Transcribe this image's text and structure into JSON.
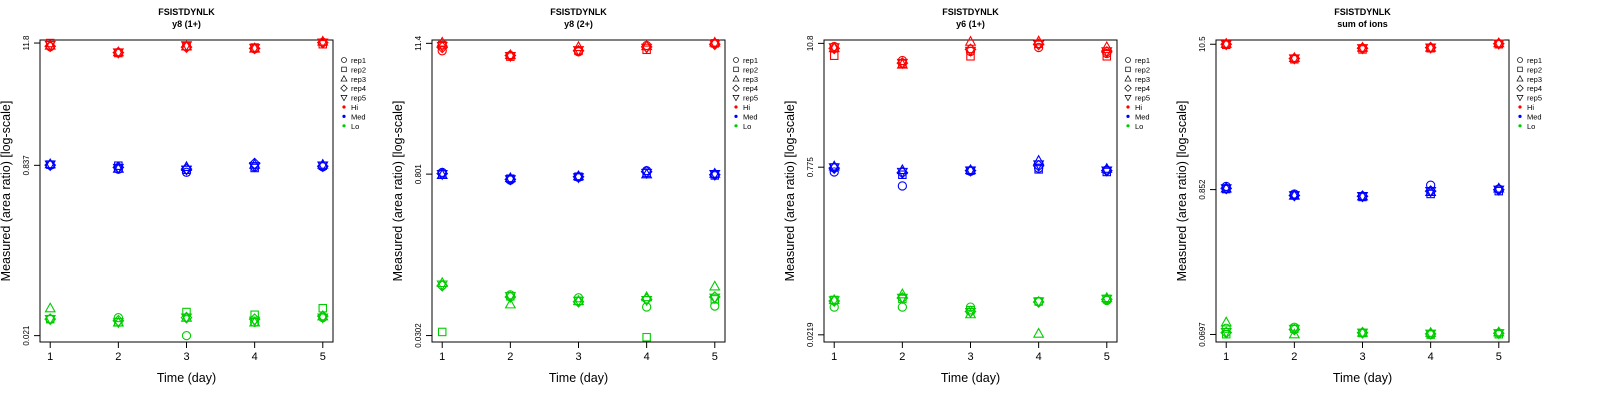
{
  "chart_data": [
    {
      "type": "scatter",
      "title": "FSISTDYNLK",
      "subtitle": "y8 (1+)",
      "xlabel": "Time (day)",
      "ylabel": "Measured (area ratio) [log-scale]",
      "log_y": true,
      "xlim": [
        0.85,
        5.15
      ],
      "ylim": [
        0.0183,
        12.6
      ],
      "x_ticks": [
        "1",
        "2",
        "3",
        "4",
        "5"
      ],
      "y_ticks": [
        {
          "value": 11.8,
          "label": "11.8"
        },
        {
          "value": 0.837,
          "label": "0.837"
        },
        {
          "value": 0.021,
          "label": "0.021"
        }
      ],
      "groups": [
        {
          "level": "Hi",
          "color": "#ff0000",
          "series": [
            {
              "name": "rep1",
              "values": [
                10.9,
                9.6,
                10.9,
                10.4,
                12.0
              ]
            },
            {
              "name": "rep2",
              "values": [
                11.8,
                9.5,
                11.0,
                10.7,
                11.5
              ]
            },
            {
              "name": "rep3",
              "values": [
                11.2,
                9.7,
                11.0,
                10.5,
                12.2
              ]
            },
            {
              "name": "rep4",
              "values": [
                11.0,
                9.6,
                10.8,
                10.5,
                11.9
              ]
            },
            {
              "name": "rep5",
              "values": [
                11.3,
                9.6,
                11.2,
                10.6,
                11.9
              ]
            }
          ]
        },
        {
          "level": "Med",
          "color": "#0000ff",
          "series": [
            {
              "name": "rep1",
              "values": [
                0.84,
                0.77,
                0.72,
                0.81,
                0.81
              ]
            },
            {
              "name": "rep2",
              "values": [
                0.85,
                0.83,
                0.76,
                0.79,
                0.83
              ]
            },
            {
              "name": "rep3",
              "values": [
                0.86,
                0.78,
                0.81,
                0.85,
                0.85
              ]
            },
            {
              "name": "rep4",
              "values": [
                0.84,
                0.8,
                0.77,
                0.87,
                0.82
              ]
            },
            {
              "name": "rep5",
              "values": [
                0.85,
                0.79,
                0.76,
                0.82,
                0.83
              ]
            }
          ]
        },
        {
          "level": "Lo",
          "color": "#00cc00",
          "series": [
            {
              "name": "rep1",
              "values": [
                0.03,
                0.031,
                0.021,
                0.028,
                0.031
              ]
            },
            {
              "name": "rep2",
              "values": [
                0.03,
                0.028,
                0.035,
                0.033,
                0.038
              ]
            },
            {
              "name": "rep3",
              "values": [
                0.038,
                0.028,
                0.031,
                0.028,
                0.032
              ]
            },
            {
              "name": "rep4",
              "values": [
                0.03,
                0.029,
                0.031,
                0.03,
                0.032
              ]
            },
            {
              "name": "rep5",
              "values": [
                0.03,
                0.028,
                0.031,
                0.029,
                0.031
              ]
            }
          ]
        }
      ]
    },
    {
      "type": "scatter",
      "title": "FSISTDYNLK",
      "subtitle": "y8 (2+)",
      "xlabel": "Time (day)",
      "ylabel": "Measured (area ratio) [log-scale]",
      "log_y": true,
      "xlim": [
        0.85,
        5.15
      ],
      "ylim": [
        0.0265,
        12.2
      ],
      "x_ticks": [
        "1",
        "2",
        "3",
        "4",
        "5"
      ],
      "y_ticks": [
        {
          "value": 11.4,
          "label": "11.4"
        },
        {
          "value": 0.801,
          "label": "0.801"
        },
        {
          "value": 0.0302,
          "label": "0.0302"
        }
      ],
      "groups": [
        {
          "level": "Hi",
          "color": "#ff0000",
          "series": [
            {
              "name": "rep1",
              "values": [
                9.8,
                8.9,
                9.6,
                10.9,
                11.4
              ]
            },
            {
              "name": "rep2",
              "values": [
                11.0,
                8.7,
                9.8,
                10.0,
                11.4
              ]
            },
            {
              "name": "rep3",
              "values": [
                11.6,
                9.0,
                10.6,
                10.8,
                11.6
              ]
            },
            {
              "name": "rep4",
              "values": [
                10.5,
                8.9,
                9.8,
                10.6,
                11.2
              ]
            },
            {
              "name": "rep5",
              "values": [
                10.8,
                8.8,
                9.9,
                10.4,
                11.3
              ]
            }
          ]
        },
        {
          "level": "Med",
          "color": "#0000ff",
          "series": [
            {
              "name": "rep1",
              "values": [
                0.83,
                0.71,
                0.75,
                0.86,
                0.8
              ]
            },
            {
              "name": "rep2",
              "values": [
                0.8,
                0.73,
                0.76,
                0.82,
                0.78
              ]
            },
            {
              "name": "rep3",
              "values": [
                0.79,
                0.74,
                0.77,
                0.8,
                0.81
              ]
            },
            {
              "name": "rep4",
              "values": [
                0.81,
                0.72,
                0.76,
                0.84,
                0.79
              ]
            },
            {
              "name": "rep5",
              "values": [
                0.8,
                0.72,
                0.75,
                0.82,
                0.8
              ]
            }
          ]
        },
        {
          "level": "Lo",
          "color": "#00cc00",
          "series": [
            {
              "name": "rep1",
              "values": [
                0.084,
                0.069,
                0.065,
                0.054,
                0.055
              ]
            },
            {
              "name": "rep2",
              "values": [
                0.0325,
                0.067,
                0.061,
                0.0292,
                0.063
              ]
            },
            {
              "name": "rep3",
              "values": [
                0.088,
                0.057,
                0.061,
                0.066,
                0.082
              ]
            },
            {
              "name": "rep4",
              "values": [
                0.083,
                0.066,
                0.06,
                0.063,
                0.066
              ]
            },
            {
              "name": "rep5",
              "values": [
                0.085,
                0.067,
                0.061,
                0.062,
                0.065
              ]
            }
          ]
        }
      ]
    },
    {
      "type": "scatter",
      "title": "FSISTDYNLK",
      "subtitle": "y6 (1+)",
      "xlabel": "Time (day)",
      "ylabel": "Measured (area ratio) [log-scale]",
      "log_y": true,
      "xlim": [
        0.85,
        5.15
      ],
      "ylim": [
        0.0188,
        11.6
      ],
      "x_ticks": [
        "1",
        "2",
        "3",
        "4",
        "5"
      ],
      "y_ticks": [
        {
          "value": 10.8,
          "label": "10.8"
        },
        {
          "value": 0.775,
          "label": "0.775"
        },
        {
          "value": 0.0219,
          "label": "0.0219"
        }
      ],
      "groups": [
        {
          "level": "Hi",
          "color": "#ff0000",
          "series": [
            {
              "name": "rep1",
              "values": [
                10.1,
                7.5,
                9.1,
                9.9,
                8.7
              ]
            },
            {
              "name": "rep2",
              "values": [
                8.3,
                7.0,
                8.2,
                10.7,
                8.2
              ]
            },
            {
              "name": "rep3",
              "values": [
                9.8,
                6.9,
                11.2,
                11.3,
                10.0
              ]
            },
            {
              "name": "rep4",
              "values": [
                9.7,
                7.1,
                9.5,
                10.6,
                9.0
              ]
            },
            {
              "name": "rep5",
              "values": [
                9.9,
                7.1,
                9.2,
                10.5,
                9.1
              ]
            }
          ]
        },
        {
          "level": "Med",
          "color": "#0000ff",
          "series": [
            {
              "name": "rep1",
              "values": [
                0.7,
                0.52,
                0.71,
                0.76,
                0.73
              ]
            },
            {
              "name": "rep2",
              "values": [
                0.77,
                0.66,
                0.72,
                0.74,
                0.7
              ]
            },
            {
              "name": "rep3",
              "values": [
                0.79,
                0.73,
                0.73,
                0.89,
                0.75
              ]
            },
            {
              "name": "rep4",
              "values": [
                0.76,
                0.69,
                0.72,
                0.8,
                0.72
              ]
            },
            {
              "name": "rep5",
              "values": [
                0.77,
                0.7,
                0.72,
                0.82,
                0.72
              ]
            }
          ]
        },
        {
          "level": "Lo",
          "color": "#00cc00",
          "series": [
            {
              "name": "rep1",
              "values": [
                0.0395,
                0.0395,
                0.0395,
                0.0445,
                0.0455
              ]
            },
            {
              "name": "rep2",
              "values": [
                0.046,
                0.047,
                0.037,
                0.0445,
                0.047
              ]
            },
            {
              "name": "rep3",
              "values": [
                0.046,
                0.052,
                0.034,
                0.0225,
                0.048
              ]
            },
            {
              "name": "rep4",
              "values": [
                0.045,
                0.048,
                0.036,
                0.044,
                0.0465
              ]
            },
            {
              "name": "rep5",
              "values": [
                0.0455,
                0.048,
                0.0355,
                0.0445,
                0.047
              ]
            }
          ]
        }
      ]
    },
    {
      "type": "scatter",
      "title": "FSISTDYNLK",
      "subtitle": "sum of ions",
      "xlabel": "Time (day)",
      "ylabel": "Measured (area ratio) [log-scale]",
      "log_y": true,
      "xlim": [
        0.85,
        5.15
      ],
      "ylim": [
        0.0612,
        11.3
      ],
      "x_ticks": [
        "1",
        "2",
        "3",
        "4",
        "5"
      ],
      "y_ticks": [
        {
          "value": 10.5,
          "label": "10.5"
        },
        {
          "value": 0.852,
          "label": "0.852"
        },
        {
          "value": 0.0697,
          "label": "0.0697"
        }
      ],
      "groups": [
        {
          "level": "Hi",
          "color": "#ff0000",
          "series": [
            {
              "name": "rep1",
              "values": [
                10.5,
                8.2,
                9.8,
                9.9,
                10.6
              ]
            },
            {
              "name": "rep2",
              "values": [
                10.4,
                8.1,
                9.6,
                9.8,
                10.5
              ]
            },
            {
              "name": "rep3",
              "values": [
                10.6,
                8.3,
                9.9,
                9.9,
                10.7
              ]
            },
            {
              "name": "rep4",
              "values": [
                10.5,
                8.2,
                9.8,
                9.9,
                10.6
              ]
            },
            {
              "name": "rep5",
              "values": [
                10.5,
                8.2,
                9.8,
                9.9,
                10.6
              ]
            }
          ]
        },
        {
          "level": "Med",
          "color": "#0000ff",
          "series": [
            {
              "name": "rep1",
              "values": [
                0.9,
                0.79,
                0.76,
                0.92,
                0.86
              ]
            },
            {
              "name": "rep2",
              "values": [
                0.86,
                0.77,
                0.75,
                0.79,
                0.83
              ]
            },
            {
              "name": "rep3",
              "values": [
                0.87,
                0.77,
                0.76,
                0.82,
                0.87
              ]
            },
            {
              "name": "rep4",
              "values": [
                0.87,
                0.77,
                0.76,
                0.83,
                0.85
              ]
            },
            {
              "name": "rep5",
              "values": [
                0.87,
                0.77,
                0.76,
                0.83,
                0.85
              ]
            }
          ]
        },
        {
          "level": "Lo",
          "color": "#00cc00",
          "series": [
            {
              "name": "rep1",
              "values": [
                0.0775,
                0.079,
                0.0718,
                0.07,
                0.0715
              ]
            },
            {
              "name": "rep2",
              "values": [
                0.07,
                0.077,
                0.0715,
                0.0695,
                0.07
              ]
            },
            {
              "name": "rep3",
              "values": [
                0.086,
                0.07,
                0.072,
                0.0718,
                0.0725
              ]
            },
            {
              "name": "rep4",
              "values": [
                0.072,
                0.076,
                0.0718,
                0.0705,
                0.0712
              ]
            },
            {
              "name": "rep5",
              "values": [
                0.0725,
                0.0765,
                0.0718,
                0.0705,
                0.0712
              ]
            }
          ]
        }
      ]
    }
  ],
  "legend": {
    "entries": [
      {
        "label": "rep1",
        "symbol": "circle",
        "color": "#000000"
      },
      {
        "label": "rep2",
        "symbol": "square",
        "color": "#000000"
      },
      {
        "label": "rep3",
        "symbol": "triangle-up",
        "color": "#000000"
      },
      {
        "label": "rep4",
        "symbol": "diamond",
        "color": "#000000"
      },
      {
        "label": "rep5",
        "symbol": "triangle-down",
        "color": "#000000"
      },
      {
        "label": "Hi",
        "symbol": "dot",
        "color": "#ff0000"
      },
      {
        "label": "Med",
        "symbol": "dot",
        "color": "#0000ff"
      },
      {
        "label": "Lo",
        "symbol": "dot",
        "color": "#00cc00"
      }
    ]
  }
}
